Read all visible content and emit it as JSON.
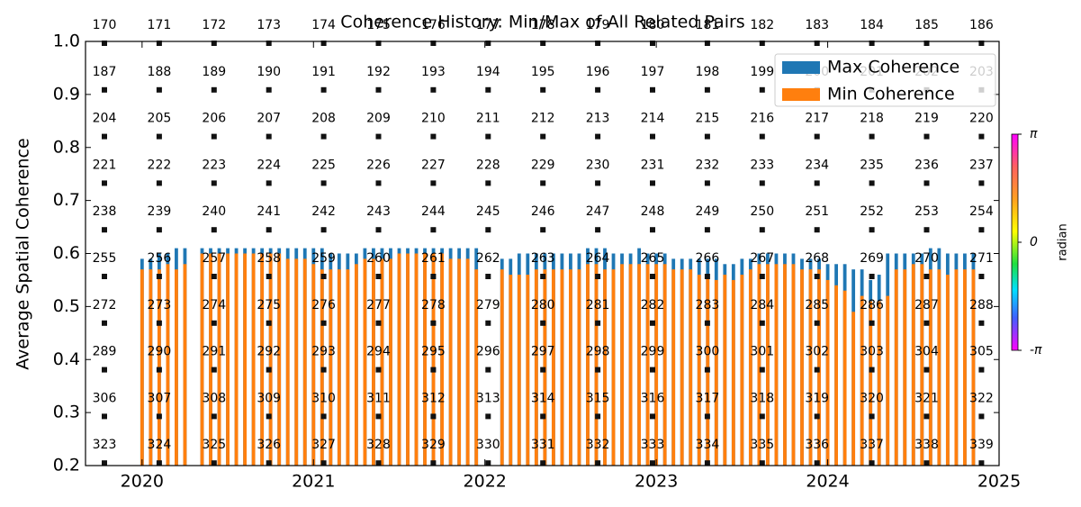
{
  "chart_data": {
    "type": "bar",
    "title": "Coherence History: Min/Max of All Related Pairs",
    "y_label": "Average Spatial Coherence",
    "x": [
      2020.0,
      2020.05,
      2020.1,
      2020.15,
      2020.2,
      2020.25,
      2020.35,
      2020.4,
      2020.45,
      2020.5,
      2020.55,
      2020.6,
      2020.65,
      2020.7,
      2020.75,
      2020.8,
      2020.85,
      2020.9,
      2020.95,
      2021.0,
      2021.05,
      2021.1,
      2021.15,
      2021.2,
      2021.25,
      2021.3,
      2021.35,
      2021.4,
      2021.45,
      2021.5,
      2021.55,
      2021.6,
      2021.65,
      2021.7,
      2021.75,
      2021.8,
      2021.85,
      2021.9,
      2021.95,
      2022.1,
      2022.15,
      2022.2,
      2022.25,
      2022.3,
      2022.35,
      2022.4,
      2022.45,
      2022.5,
      2022.55,
      2022.6,
      2022.65,
      2022.7,
      2022.75,
      2022.8,
      2022.85,
      2022.9,
      2022.95,
      2023.0,
      2023.05,
      2023.1,
      2023.15,
      2023.2,
      2023.25,
      2023.3,
      2023.35,
      2023.4,
      2023.45,
      2023.5,
      2023.55,
      2023.6,
      2023.65,
      2023.7,
      2023.75,
      2023.8,
      2023.85,
      2023.9,
      2023.95,
      2024.0,
      2024.05,
      2024.1,
      2024.15,
      2024.2,
      2024.25,
      2024.3,
      2024.35,
      2024.4,
      2024.45,
      2024.5,
      2024.55,
      2024.6,
      2024.65,
      2024.7,
      2024.75,
      2024.8,
      2024.85
    ],
    "series": [
      {
        "name": "Max Coherence",
        "color": "#1f77b4",
        "values": [
          0.59,
          0.59,
          0.6,
          0.6,
          0.61,
          0.61,
          0.61,
          0.61,
          0.61,
          0.61,
          0.61,
          0.61,
          0.61,
          0.61,
          0.61,
          0.61,
          0.61,
          0.61,
          0.61,
          0.61,
          0.61,
          0.6,
          0.6,
          0.6,
          0.6,
          0.61,
          0.61,
          0.61,
          0.61,
          0.61,
          0.61,
          0.61,
          0.61,
          0.61,
          0.61,
          0.61,
          0.61,
          0.61,
          0.61,
          0.59,
          0.59,
          0.6,
          0.6,
          0.6,
          0.6,
          0.6,
          0.6,
          0.6,
          0.6,
          0.61,
          0.61,
          0.61,
          0.6,
          0.6,
          0.6,
          0.61,
          0.6,
          0.6,
          0.6,
          0.59,
          0.59,
          0.59,
          0.59,
          0.59,
          0.59,
          0.58,
          0.58,
          0.59,
          0.59,
          0.6,
          0.6,
          0.6,
          0.6,
          0.6,
          0.59,
          0.59,
          0.59,
          0.58,
          0.58,
          0.58,
          0.57,
          0.57,
          0.55,
          0.56,
          0.6,
          0.6,
          0.6,
          0.6,
          0.6,
          0.61,
          0.61,
          0.6,
          0.6,
          0.6,
          0.6
        ]
      },
      {
        "name": "Min Coherence",
        "color": "#ff7f0e",
        "values": [
          0.57,
          0.57,
          0.57,
          0.58,
          0.57,
          0.58,
          0.6,
          0.6,
          0.6,
          0.6,
          0.6,
          0.6,
          0.6,
          0.6,
          0.6,
          0.6,
          0.59,
          0.59,
          0.59,
          0.58,
          0.57,
          0.57,
          0.57,
          0.57,
          0.58,
          0.59,
          0.59,
          0.59,
          0.59,
          0.6,
          0.6,
          0.6,
          0.6,
          0.6,
          0.6,
          0.59,
          0.59,
          0.59,
          0.57,
          0.57,
          0.56,
          0.56,
          0.56,
          0.57,
          0.57,
          0.57,
          0.57,
          0.57,
          0.57,
          0.58,
          0.58,
          0.57,
          0.57,
          0.58,
          0.58,
          0.58,
          0.58,
          0.58,
          0.58,
          0.57,
          0.57,
          0.57,
          0.56,
          0.56,
          0.55,
          0.56,
          0.55,
          0.56,
          0.57,
          0.58,
          0.58,
          0.58,
          0.58,
          0.58,
          0.57,
          0.57,
          0.57,
          0.55,
          0.54,
          0.53,
          0.49,
          0.52,
          0.51,
          0.51,
          0.52,
          0.57,
          0.57,
          0.58,
          0.58,
          0.57,
          0.57,
          0.56,
          0.57,
          0.57,
          0.57
        ]
      }
    ],
    "xlim": [
      2019.67,
      2025
    ],
    "xticks": [
      2020,
      2021,
      2022,
      2023,
      2024,
      2025
    ],
    "ylim": [
      0.2,
      1.0
    ],
    "yticks": [
      0.2,
      0.3,
      0.4,
      0.5,
      0.6,
      0.7,
      0.8,
      0.9,
      {
        "value": 1.0,
        "label": "1.0"
      }
    ],
    "legend": "upper right",
    "tile_labels": [
      [
        170,
        171,
        172,
        173,
        174,
        175,
        176,
        177,
        178,
        179,
        180,
        181,
        182,
        183,
        184,
        185,
        186
      ],
      [
        187,
        188,
        189,
        190,
        191,
        192,
        193,
        194,
        195,
        196,
        197,
        198,
        199,
        200,
        201,
        202,
        203
      ],
      [
        204,
        205,
        206,
        207,
        208,
        209,
        210,
        211,
        212,
        213,
        214,
        215,
        216,
        217,
        218,
        219,
        220
      ],
      [
        221,
        222,
        223,
        224,
        225,
        226,
        227,
        228,
        229,
        230,
        231,
        232,
        233,
        234,
        235,
        236,
        237
      ],
      [
        238,
        239,
        240,
        241,
        242,
        243,
        244,
        245,
        246,
        247,
        248,
        249,
        250,
        251,
        252,
        253,
        254
      ],
      [
        255,
        256,
        257,
        258,
        259,
        260,
        261,
        262,
        263,
        264,
        265,
        266,
        267,
        268,
        269,
        270,
        271
      ],
      [
        272,
        273,
        274,
        275,
        276,
        277,
        278,
        279,
        280,
        281,
        282,
        283,
        284,
        285,
        286,
        287,
        288
      ],
      [
        289,
        290,
        291,
        292,
        293,
        294,
        295,
        296,
        297,
        298,
        299,
        300,
        301,
        302,
        303,
        304,
        305
      ],
      [
        306,
        307,
        308,
        309,
        310,
        311,
        312,
        313,
        314,
        315,
        316,
        317,
        318,
        319,
        320,
        321,
        322
      ],
      [
        323,
        324,
        325,
        326,
        327,
        328,
        329,
        330,
        331,
        332,
        333,
        334,
        335,
        336,
        337,
        338,
        339
      ]
    ],
    "colorbar": {
      "label": "radian",
      "lim": [
        -3.14159,
        3.14159
      ],
      "ticks": [
        {
          "value": 3.14159,
          "label": "π"
        },
        {
          "value": 0,
          "label": "0"
        },
        {
          "value": -3.14159,
          "label": "-π"
        }
      ]
    }
  }
}
